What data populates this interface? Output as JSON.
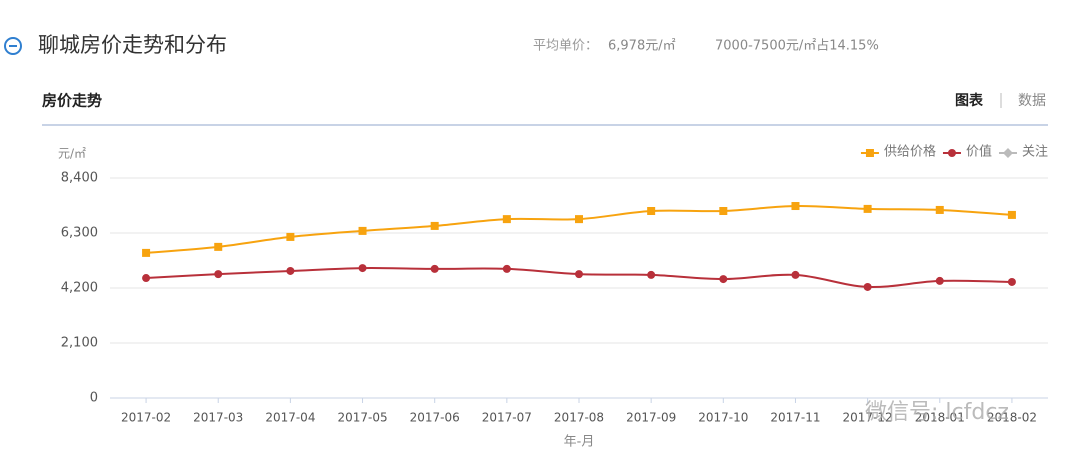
{
  "header": {
    "title": "聊城房价走势和分布",
    "avg_label": "平均单价：",
    "avg_value": "6,978元/㎡",
    "range_share": "7000-7500元/㎡占14.15%"
  },
  "tabs": {
    "section": "房价走势",
    "chart_tab": "图表",
    "data_tab": "数据"
  },
  "watermark": "微信号: lcfdcz",
  "chart_data": {
    "type": "line",
    "y_unit": "元/㎡",
    "x_label": "年-月",
    "categories": [
      "2017-02",
      "2017-03",
      "2017-04",
      "2017-05",
      "2017-06",
      "2017-07",
      "2017-08",
      "2017-09",
      "2017-10",
      "2017-11",
      "2017-12",
      "2018-01",
      "2018-02"
    ],
    "series": [
      {
        "name": "供给价格",
        "color": "#f7a30f",
        "marker": "square",
        "values": [
          5540,
          5770,
          6150,
          6380,
          6570,
          6830,
          6830,
          7140,
          7140,
          7330,
          7220,
          7180,
          6990
        ]
      },
      {
        "name": "价值",
        "color": "#b8303a",
        "marker": "circle",
        "values": [
          4580,
          4730,
          4850,
          4960,
          4930,
          4930,
          4730,
          4700,
          4540,
          4700,
          4240,
          4470,
          4430
        ]
      },
      {
        "name": "关注",
        "color": "#bbbbbb",
        "marker": "diamond",
        "values": [
          null,
          null,
          null,
          null,
          null,
          null,
          null,
          null,
          null,
          null,
          null,
          null,
          null
        ]
      }
    ],
    "ylim": [
      0,
      8400
    ],
    "yticks": [
      0,
      {
        "value": 2100,
        "label": "2,100"
      },
      {
        "value": 4200,
        "label": "4,200"
      },
      {
        "value": 6300,
        "label": "6,300"
      },
      {
        "value": 8400,
        "label": "8,400"
      }
    ],
    "grid": true,
    "legend": "top-right"
  }
}
